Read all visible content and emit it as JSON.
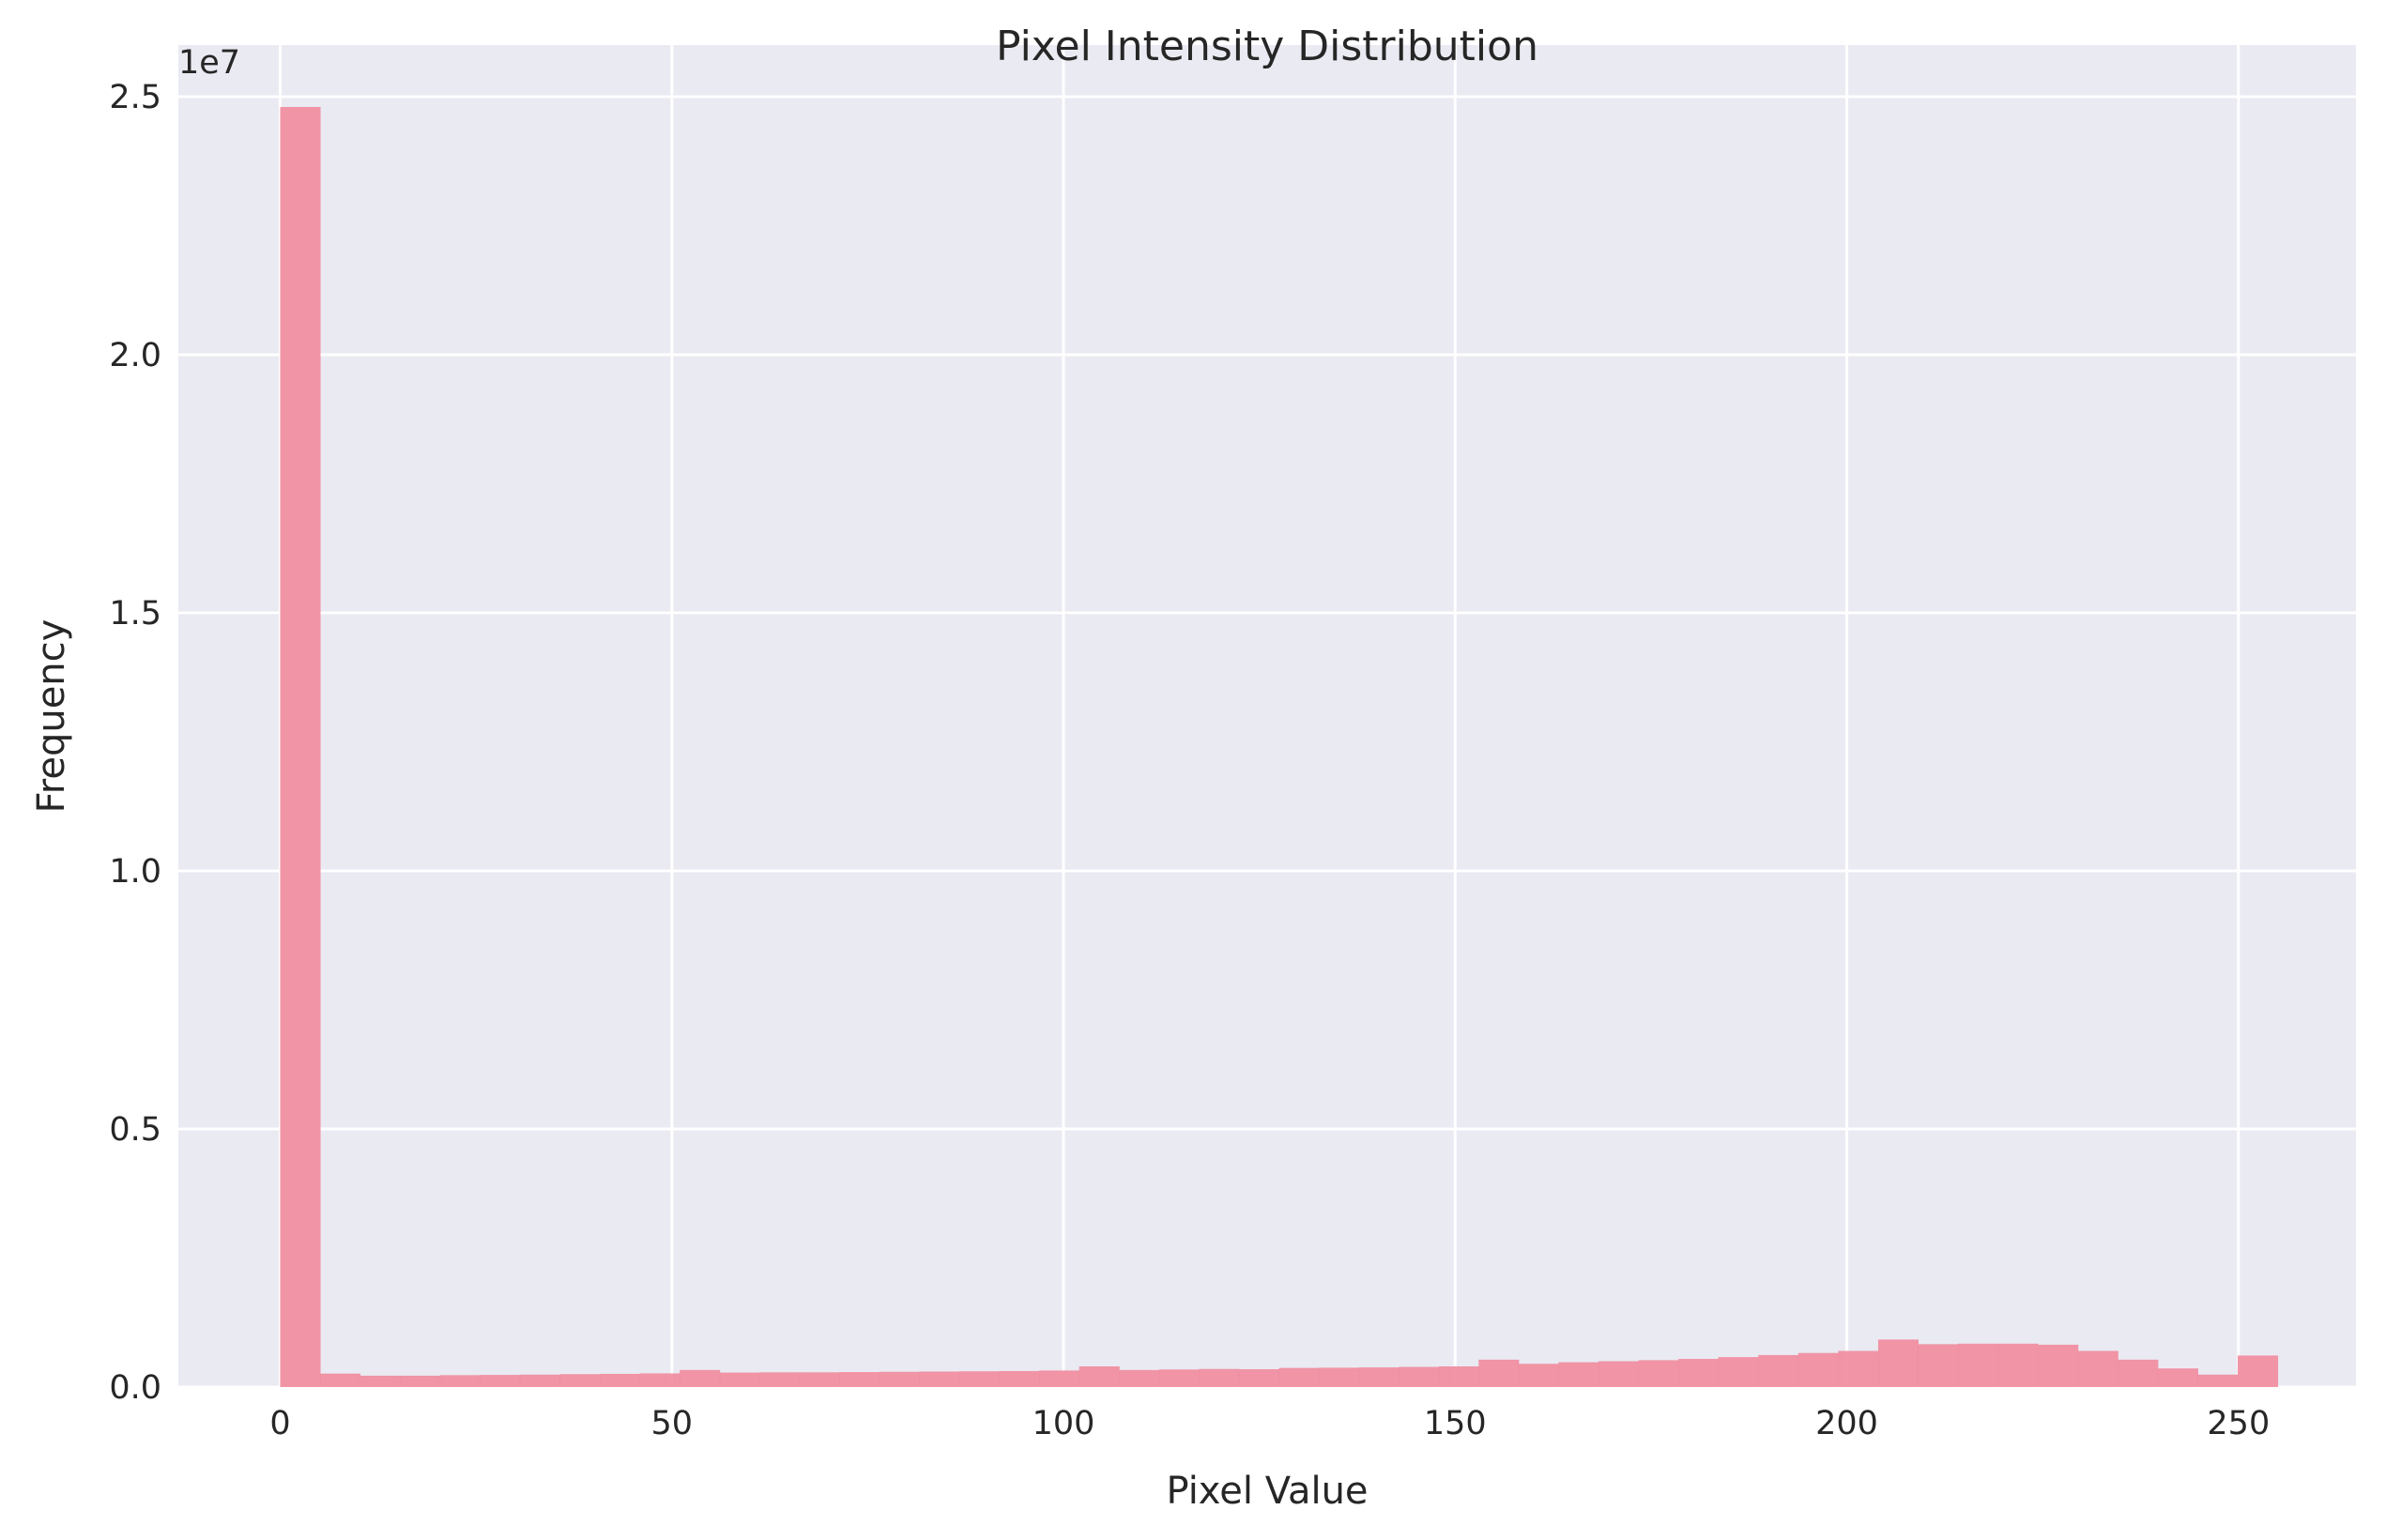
{
  "colors": {
    "plot_background": "#EAEAF2",
    "grid": "#FFFFFF",
    "bar": "#F08CA0",
    "text": "#262626"
  },
  "chart_data": {
    "type": "bar",
    "title": "Pixel Intensity Distribution",
    "xlabel": "Pixel Value",
    "ylabel": "Frequency",
    "y_offset_label": "1e7",
    "x_ticks": [
      0,
      50,
      100,
      150,
      200,
      250
    ],
    "x_tick_labels": [
      "0",
      "50",
      "100",
      "150",
      "200",
      "250"
    ],
    "y_ticks": [
      0,
      5000000,
      10000000,
      15000000,
      20000000,
      25000000
    ],
    "y_tick_labels": [
      "0.0",
      "0.5",
      "1.0",
      "1.5",
      "2.0",
      "2.5"
    ],
    "xlim": [
      -13,
      265
    ],
    "ylim": [
      0,
      26000000
    ],
    "grid": true,
    "bin_edges": [
      0,
      5.1,
      10.2,
      15.3,
      20.4,
      25.5,
      30.6,
      35.7,
      40.8,
      45.9,
      51,
      56.1,
      61.2,
      66.3,
      71.4,
      76.5,
      81.6,
      86.7,
      91.8,
      96.9,
      102,
      107.1,
      112.2,
      117.3,
      122.4,
      127.5,
      132.6,
      137.7,
      142.8,
      147.9,
      153,
      158.1,
      163.2,
      168.3,
      173.4,
      178.5,
      183.6,
      188.7,
      193.8,
      198.9,
      204,
      209.1,
      214.2,
      219.3,
      224.4,
      229.5,
      234.6,
      239.7,
      244.8,
      249.9,
      255
    ],
    "values": [
      24800000,
      260000,
      220000,
      220000,
      230000,
      235000,
      240000,
      250000,
      255000,
      265000,
      330000,
      280000,
      285000,
      285000,
      290000,
      295000,
      300000,
      305000,
      310000,
      320000,
      400000,
      330000,
      340000,
      350000,
      345000,
      370000,
      375000,
      380000,
      390000,
      400000,
      530000,
      450000,
      480000,
      500000,
      520000,
      545000,
      580000,
      620000,
      660000,
      700000,
      920000,
      830000,
      840000,
      840000,
      820000,
      700000,
      530000,
      360000,
      240000,
      610000
    ]
  }
}
